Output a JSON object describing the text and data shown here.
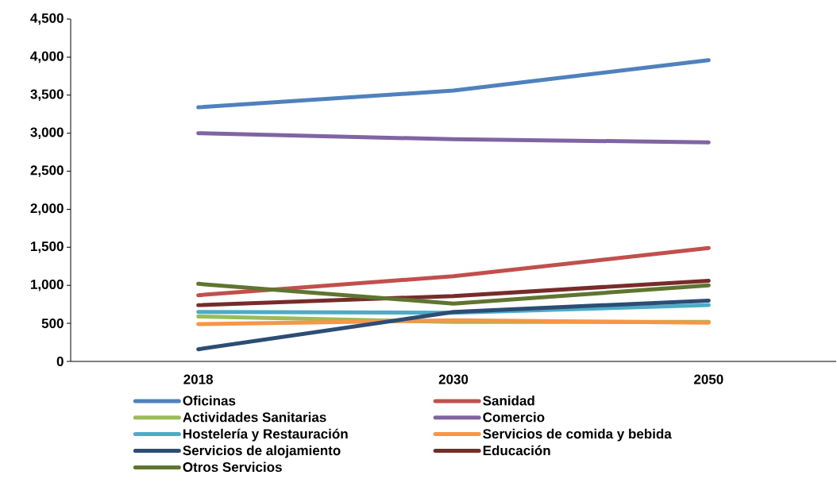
{
  "chart_data": {
    "type": "line",
    "categories": [
      "2018",
      "2030",
      "2050"
    ],
    "series": [
      {
        "name": "Oficinas",
        "color": "#4f81bd",
        "values": [
          3340,
          3560,
          3960
        ]
      },
      {
        "name": "Sanidad",
        "color": "#c0504d",
        "values": [
          870,
          1120,
          1490
        ]
      },
      {
        "name": "Actividades Sanitarias",
        "color": "#9bbb59",
        "values": [
          590,
          520,
          520
        ]
      },
      {
        "name": "Comercio",
        "color": "#8064a2",
        "values": [
          3000,
          2920,
          2880
        ]
      },
      {
        "name": "Hostelería y Restauración",
        "color": "#4bacc6",
        "values": [
          650,
          640,
          740
        ]
      },
      {
        "name": "Servicios de comida y bebida",
        "color": "#f79646",
        "values": [
          490,
          540,
          510
        ]
      },
      {
        "name": "Servicios de alojamiento",
        "color": "#2c4d75",
        "values": [
          160,
          650,
          800
        ]
      },
      {
        "name": "Educación",
        "color": "#772c2a",
        "values": [
          740,
          860,
          1060
        ]
      },
      {
        "name": "Otros Servicios",
        "color": "#5f7530",
        "values": [
          1020,
          760,
          1000
        ]
      }
    ],
    "ylim": [
      0,
      4500
    ],
    "yticks": [
      0,
      500,
      {
        "value": 1000,
        "label": "1,000"
      },
      {
        "value": 1500,
        "label": "1,500"
      },
      {
        "value": 2000,
        "label": "2,000"
      },
      {
        "value": 2500,
        "label": "2,500"
      },
      {
        "value": 3000,
        "label": "3,000"
      },
      {
        "value": 3500,
        "label": "3,500"
      },
      {
        "value": 4000,
        "label": "4,000"
      },
      {
        "value": 4500,
        "label": "4,500"
      }
    ],
    "grid": false,
    "legend": "bottom",
    "marker": "none",
    "line_style": "solid"
  }
}
